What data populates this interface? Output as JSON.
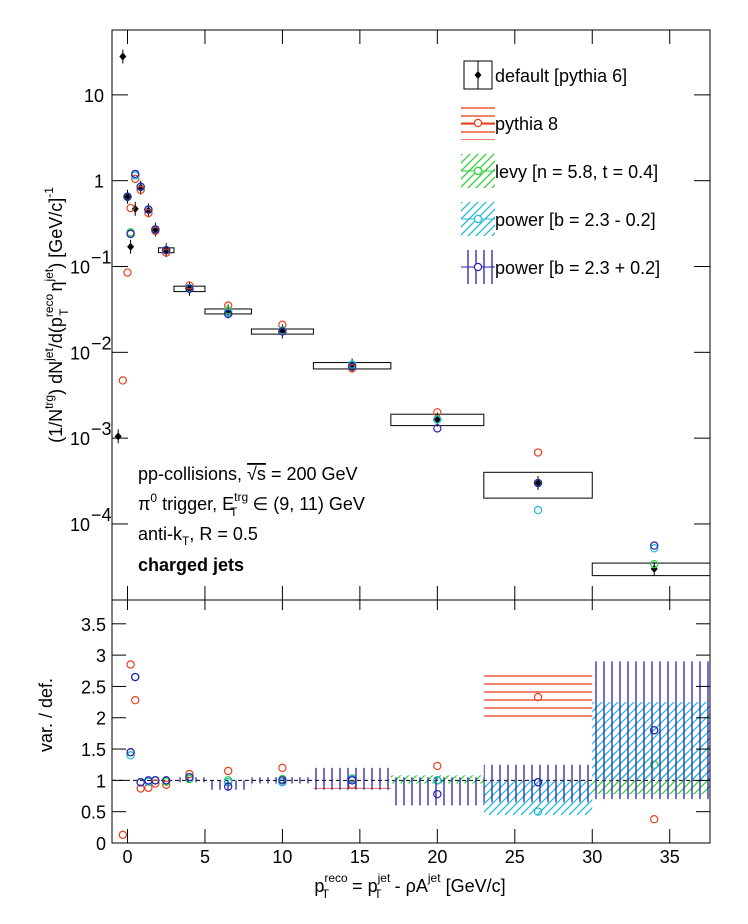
{
  "chart_data": {
    "type": "scatter",
    "xlim": [
      -1,
      37.6
    ],
    "xticks": [
      0,
      5,
      10,
      15,
      20,
      25,
      30,
      35
    ],
    "xlabel_parts": [
      "p",
      "reco",
      "T",
      " = p",
      "jet",
      "T",
      " - ρA",
      "jet",
      " [GeV/c]"
    ],
    "x": [
      -0.6,
      -0.3,
      0,
      0.2,
      0.5,
      0.85,
      1.35,
      1.8,
      2.5,
      4,
      6.5,
      10,
      14.5,
      20,
      26.5,
      34
    ],
    "top": {
      "log": true,
      "ylim": [
        1.3e-05,
        57
      ],
      "yticks": [
        {
          "value": 0.0001,
          "label": "10",
          "exp": "−4"
        },
        {
          "value": 0.001,
          "label": "10",
          "exp": "−3"
        },
        {
          "value": 0.01,
          "label": "10",
          "exp": "−2"
        },
        {
          "value": 0.1,
          "label": "10",
          "exp": "−1"
        },
        1,
        10
      ],
      "ylabel_parts": [
        "(1/N",
        "trg",
        ") dN",
        "jet",
        "/d(p",
        "reco",
        "T",
        " η",
        "jet",
        ") [GeV/c]",
        "-1"
      ]
    },
    "ratio": {
      "ylabel": "var. / def.",
      "ylim": [
        0,
        3.88
      ],
      "yticks": [
        0,
        0.5,
        1,
        1.5,
        2,
        2.5,
        3,
        3.5
      ],
      "ref_line": 1
    },
    "series": [
      {
        "name": "default [pythia 6]",
        "color": "#000000",
        "marker": "filled",
        "values": [
          0.00105,
          28,
          0.65,
          0.17,
          0.47,
          0.83,
          0.45,
          0.27,
          0.155,
          0.055,
          0.03,
          0.0175,
          0.007,
          0.00165,
          0.0003,
          3e-05
        ],
        "box_xerr": [
          null,
          null,
          null,
          null,
          null,
          null,
          null,
          null,
          0.5,
          1,
          1.5,
          2,
          2.5,
          3,
          3.5,
          4
        ],
        "box_yerr": [
          null,
          null,
          null,
          null,
          null,
          null,
          null,
          null,
          0.01,
          0.004,
          0.002,
          0.0012,
          0.0006,
          0.00025,
          0.0001,
          5e-06
        ]
      },
      {
        "name": "pythia 8",
        "color": "#e8401c",
        "marker": "open",
        "hatch": "horizontal",
        "values": [
          null,
          0.0047,
          0.085,
          0.48,
          1.05,
          0.78,
          0.42,
          0.26,
          0.145,
          0.06,
          0.035,
          0.021,
          0.0065,
          0.002,
          0.00068,
          null
        ],
        "ratio": [
          null,
          0.13,
          null,
          2.85,
          2.28,
          0.87,
          0.88,
          0.95,
          0.93,
          1.1,
          1.15,
          1.2,
          0.93,
          1.23,
          2.33,
          0.38
        ],
        "ratio_bands": [
          [
            8,
            12,
            1.15,
            1.19
          ],
          [
            12,
            17,
            0.85,
            0.88
          ],
          [
            23,
            30,
            1.95,
            2.7
          ]
        ]
      },
      {
        "name": "levy [n = 5.8, t = 0.4]",
        "color": "#2fcf3a",
        "marker": "open",
        "hatch": "diagonal",
        "values": [
          null,
          null,
          0.65,
          0.25,
          1.15,
          0.85,
          0.46,
          0.27,
          0.155,
          0.055,
          0.031,
          0.018,
          0.0072,
          0.00165,
          0.0003,
          3.4e-05
        ],
        "ratio": [
          null,
          null,
          null,
          1.45,
          2.65,
          0.97,
          0.98,
          1.0,
          0.98,
          1.02,
          1.0,
          1.02,
          1.03,
          1.0,
          0.97,
          1.25
        ],
        "ratio_bands": [
          [
            17,
            23,
            0.95,
            1.08
          ],
          [
            30,
            38,
            0.78,
            1.45
          ]
        ]
      },
      {
        "name": "power [b = 2.3 - 0.2]",
        "color": "#1fb8d8",
        "marker": "open",
        "hatch": "diagonal",
        "values": [
          null,
          null,
          0.65,
          0.24,
          1.15,
          0.85,
          0.46,
          0.27,
          0.155,
          0.056,
          0.029,
          0.0178,
          0.0072,
          0.00165,
          0.000145,
          5.2e-05
        ],
        "ratio": [
          null,
          null,
          null,
          1.4,
          2.65,
          0.97,
          0.98,
          1.0,
          1.0,
          1.05,
          0.97,
          0.97,
          1.02,
          1.0,
          0.5,
          1.8
        ],
        "ratio_bands": [
          [
            23,
            30,
            0.45,
            1.0
          ],
          [
            30,
            38,
            1.0,
            2.25
          ]
        ]
      },
      {
        "name": "power [b = 2.3 + 0.2]",
        "color": "#2a1fb0",
        "marker": "open",
        "hatch": "vertical",
        "values": [
          null,
          null,
          0.65,
          0.24,
          1.2,
          0.85,
          0.46,
          0.27,
          0.155,
          0.055,
          0.028,
          0.0175,
          0.0068,
          0.0013,
          0.0003,
          5.6e-05
        ],
        "ratio": [
          null,
          null,
          null,
          1.45,
          2.65,
          0.97,
          1.0,
          1.0,
          1.0,
          1.05,
          0.9,
          1.0,
          1.0,
          0.78,
          0.97,
          1.8
        ],
        "ratio_bands": [
          [
            3,
            5,
            0.97,
            1.05
          ],
          [
            5,
            8,
            0.85,
            1.0
          ],
          [
            8,
            12,
            0.95,
            1.05
          ],
          [
            12,
            17,
            0.85,
            1.2
          ],
          [
            17,
            23,
            0.6,
            1.05
          ],
          [
            23,
            30,
            0.65,
            1.25
          ],
          [
            30,
            38,
            0.7,
            2.9
          ]
        ]
      }
    ],
    "annotations": [
      [
        "pp-collisions, ",
        "√s",
        " = 200 GeV"
      ],
      [
        "π",
        "0",
        " trigger, E",
        "trg",
        "T",
        " ∈ (9, 11) GeV"
      ],
      [
        "anti-k",
        "T",
        ", R = 0.5"
      ],
      [
        "charged jets"
      ]
    ]
  }
}
